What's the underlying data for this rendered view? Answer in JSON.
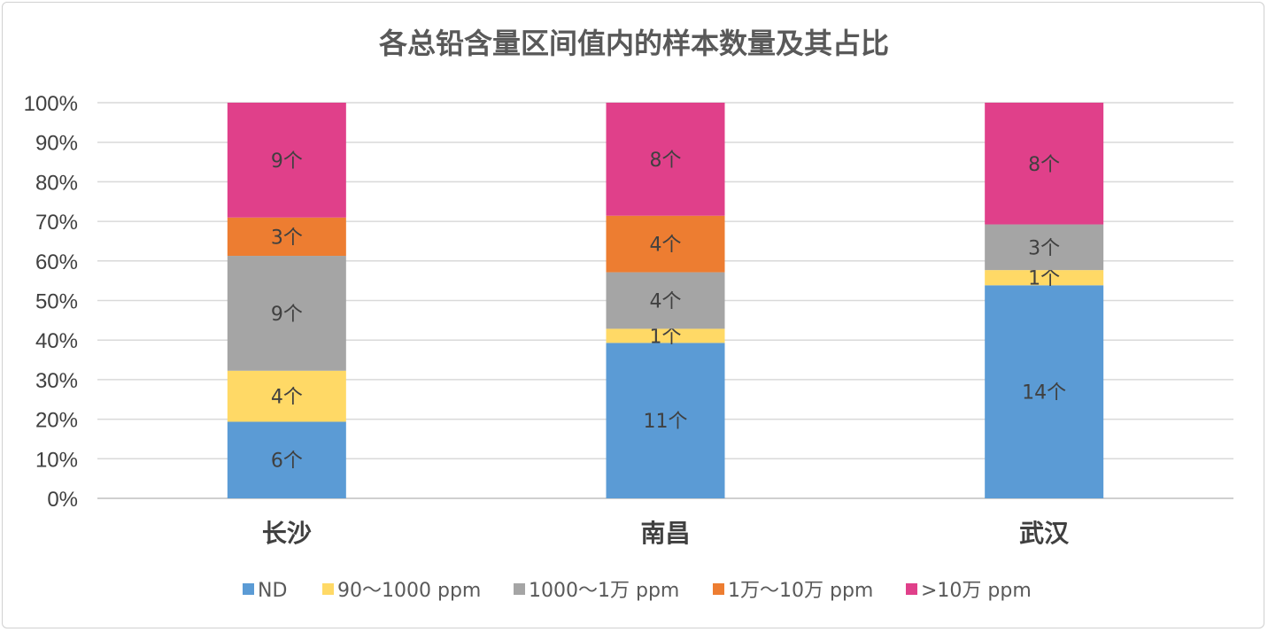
{
  "chart_data": {
    "type": "bar",
    "stacked": "percent",
    "title": "各总铅含量区间值内的样本数量及其占比",
    "categories": [
      "长沙",
      "南昌",
      "武汉"
    ],
    "series": [
      {
        "name": "ND",
        "color": "#5b9bd5",
        "values": [
          6,
          11,
          14
        ],
        "labels": [
          "6个",
          "11个",
          "14个"
        ]
      },
      {
        "name": "90～1000 ppm",
        "color": "#ffd966",
        "values": [
          4,
          1,
          1
        ],
        "labels": [
          "4个",
          "1个",
          "1个"
        ]
      },
      {
        "name": "1000～1万 ppm",
        "color": "#a5a5a5",
        "values": [
          9,
          4,
          3
        ],
        "labels": [
          "9个",
          "4个",
          "3个"
        ]
      },
      {
        "name": "1万～10万 ppm",
        "color": "#ed7d31",
        "values": [
          3,
          4,
          0
        ],
        "labels": [
          "3个",
          "4个",
          ""
        ]
      },
      {
        "name": ">10万 ppm",
        "color": "#e0408a",
        "values": [
          9,
          8,
          8
        ],
        "labels": [
          "9个",
          "8个",
          "8个"
        ]
      }
    ],
    "y_ticks": [
      "0%",
      "10%",
      "20%",
      "30%",
      "40%",
      "50%",
      "60%",
      "70%",
      "80%",
      "90%",
      "100%"
    ],
    "ylim": [
      0,
      100
    ],
    "grid": true,
    "legend": "bottom"
  }
}
